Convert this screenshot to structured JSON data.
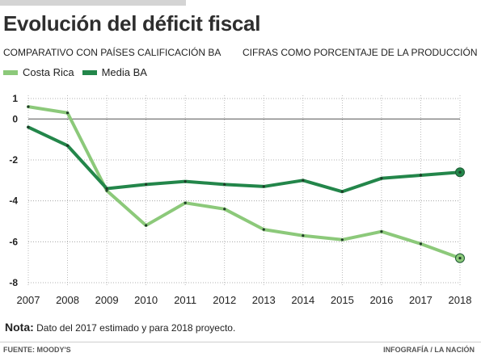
{
  "header": {
    "title": "Evolución del déficit fiscal",
    "subtitle_left": "COMPARATIVO CON PAÍSES CALIFICACIÓN BA",
    "subtitle_right": "CIFRAS COMO PORCENTAJE DE LA PRODUCCIÓN"
  },
  "footer": {
    "note_label": "Nota:",
    "note_text": "Dato del 2017 estimado y para 2018 proyecto.",
    "source": "FUENTE: MOODY'S",
    "credit": "INFOGRAFÍA / LA NACIÓN"
  },
  "chart_data": {
    "type": "line",
    "x": [
      "2007",
      "2008",
      "2009",
      "2010",
      "2011",
      "2012",
      "2013",
      "2014",
      "2015",
      "2016",
      "2017",
      "2018"
    ],
    "ylim": [
      -8,
      1
    ],
    "yticks": [
      "1",
      "0",
      "-2",
      "-4",
      "-6",
      "-8"
    ],
    "grid": true,
    "legend_position": "top-left",
    "series": [
      {
        "name": "Costa Rica",
        "color": "#8cc97a",
        "values": [
          0.6,
          0.3,
          -3.5,
          -5.2,
          -4.1,
          -4.4,
          -5.4,
          -5.7,
          -5.9,
          -5.5,
          -6.1,
          -6.8
        ]
      },
      {
        "name": "Media BA",
        "color": "#23864a",
        "values": [
          -0.4,
          -1.3,
          -3.4,
          -3.2,
          -3.05,
          -3.2,
          -3.3,
          -3.0,
          -3.55,
          -2.9,
          -2.75,
          -2.6
        ]
      }
    ]
  }
}
